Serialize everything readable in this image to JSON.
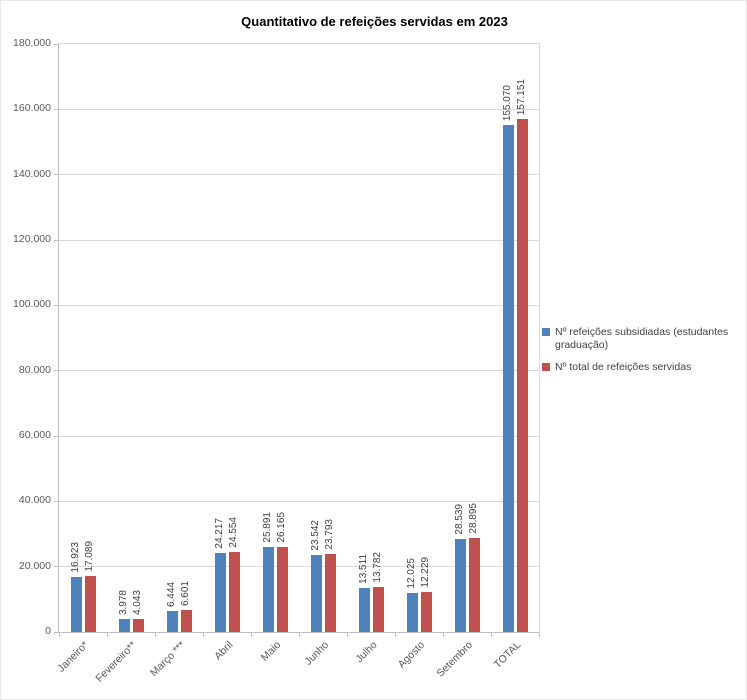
{
  "chart_data": {
    "type": "bar",
    "title": "Quantitativo de refeições servidas em 2023",
    "categories": [
      "Janeiro*",
      "Fevereiro**",
      "Março ***",
      "Abril",
      "Maio",
      "Junho",
      "Julho",
      "Agosto",
      "Setembro",
      "TOTAL"
    ],
    "series": [
      {
        "name": "Nº refeições subsidiadas (estudantes graduação)",
        "color": "#4F81BD",
        "values": [
          16923,
          3978,
          6444,
          24217,
          25891,
          23542,
          13511,
          12025,
          28539,
          155070
        ],
        "value_labels": [
          "16.923",
          "3.978",
          "6.444",
          "24.217",
          "25.891",
          "23.542",
          "13.511",
          "12.025",
          "28.539",
          "155.070"
        ]
      },
      {
        "name": "Nº total de refeições servidas",
        "color": "#C0504D",
        "values": [
          17089,
          4043,
          6601,
          24554,
          26165,
          23793,
          13782,
          12229,
          28895,
          157151
        ],
        "value_labels": [
          "17.089",
          "4.043",
          "6.601",
          "24.554",
          "26.165",
          "23.793",
          "13.782",
          "12.229",
          "28.895",
          "157.151"
        ]
      }
    ],
    "ylabel": "",
    "xlabel": "",
    "ylim": [
      0,
      180000
    ],
    "ytick_step": 20000,
    "ytick_labels": [
      "0",
      "20.000",
      "40.000",
      "60.000",
      "80.000",
      "100.000",
      "120.000",
      "140.000",
      "160.000",
      "180.000"
    ],
    "grid": true,
    "legend_position": "right",
    "data_labels": "rotated-vertical",
    "x_labels_rotation_deg": -45
  },
  "colors": {
    "background": "#FFFFFF",
    "gridline": "#D9D9D9",
    "axis_line": "#BFBFBF",
    "axis_text": "#595959",
    "value_label_text": "#404040",
    "title_text": "#000000"
  }
}
